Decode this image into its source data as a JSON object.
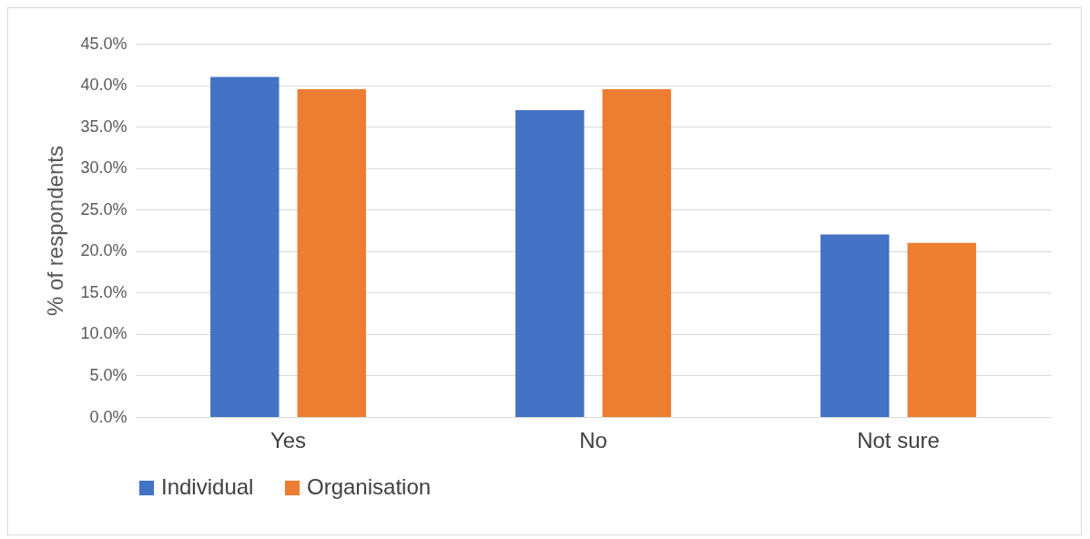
{
  "chart_data": {
    "type": "bar",
    "ylabel": "% of respondents",
    "categories": [
      "Yes",
      "No",
      "Not sure"
    ],
    "series": [
      {
        "name": "Individual",
        "color": "#4472c4",
        "values": [
          41.0,
          37.0,
          22.0
        ]
      },
      {
        "name": "Organisation",
        "color": "#ed7d31",
        "values": [
          39.5,
          39.5,
          21.0
        ]
      }
    ],
    "ylim": [
      0,
      45
    ],
    "yticks": [
      {
        "value": 0,
        "label": "0.0%"
      },
      {
        "value": 5,
        "label": "5.0%"
      },
      {
        "value": 10,
        "label": "10.0%"
      },
      {
        "value": 15,
        "label": "15.0%"
      },
      {
        "value": 20,
        "label": "20.0%"
      },
      {
        "value": 25,
        "label": "25.0%"
      },
      {
        "value": 30,
        "label": "30.0%"
      },
      {
        "value": 35,
        "label": "35.0%"
      },
      {
        "value": 40,
        "label": "40.0%"
      },
      {
        "value": 45,
        "label": "45.0%"
      }
    ],
    "grid": "y",
    "legend": "bottom"
  }
}
